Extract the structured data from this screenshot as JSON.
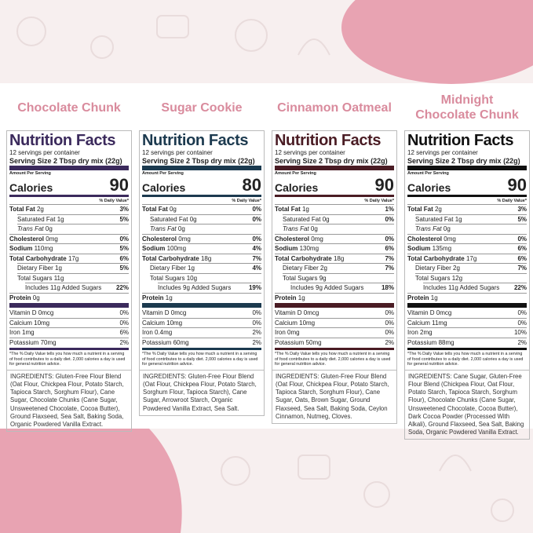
{
  "panels": [
    {
      "title": "Chocolate Chunk",
      "color": "#3b2a5c",
      "heading": "Nutrition Facts",
      "servings": "12 servings per container",
      "serving_size_label": "Serving Size",
      "serving_size": "2 Tbsp dry mix (22g)",
      "amount_per_serving": "Amount Per Serving",
      "calories_label": "Calories",
      "calories": "90",
      "dv_header": "% Daily Value*",
      "nutrients": [
        {
          "name": "Total Fat",
          "amount": "2g",
          "dv": "3%"
        },
        {
          "name": "Saturated Fat",
          "amount": "1g",
          "dv": "5%"
        },
        {
          "name": "Trans Fat",
          "amount": "0g"
        },
        {
          "name": "Cholesterol",
          "amount": "0mg",
          "dv": "0%"
        },
        {
          "name": "Sodium",
          "amount": "110mg",
          "dv": "5%"
        },
        {
          "name": "Total Carbohydrate",
          "amount": "17g",
          "dv": "6%"
        },
        {
          "name": "Dietary Fiber",
          "amount": "1g",
          "dv": "5%"
        },
        {
          "name": "Total Sugars",
          "amount": "11g"
        },
        {
          "name": "Includes 11g Added Sugars",
          "dv": "22%"
        },
        {
          "name": "Protein",
          "amount": "0g"
        }
      ],
      "vitamins": [
        {
          "name": "Vitamin D 0mcg",
          "dv": "0%"
        },
        {
          "name": "Calcium 10mg",
          "dv": "0%"
        },
        {
          "name": "Iron 1mg",
          "dv": "6%"
        },
        {
          "name": "Potassium 70mg",
          "dv": "2%"
        }
      ],
      "footnote": "*The % Daily Value tells you how much a nutrient in a serving of food contributes to a daily diet. 2,000 calories a day is used for general nutrition advice.",
      "ingredients": "INGREDIENTS: Gluten-Free Flour Blend (Oat Flour, Chickpea Flour, Potato Starch, Tapioca Starch, Sorghum Flour), Cane Sugar, Chocolate Chunks (Cane Sugar, Unsweetened Chocolate, Cocoa Butter), Ground Flaxseed, Sea Salt, Baking Soda, Organic Powdered Vanilla Extract."
    },
    {
      "title": "Sugar Cookie",
      "color": "#1c3a4f",
      "heading": "Nutrition Facts",
      "servings": "12 servings per container",
      "serving_size_label": "Serving Size",
      "serving_size": "2 Tbsp dry mix (22g)",
      "amount_per_serving": "Amount Per Serving",
      "calories_label": "Calories",
      "calories": "80",
      "dv_header": "% Daily Value*",
      "nutrients": [
        {
          "name": "Total Fat",
          "amount": "0g",
          "dv": "0%"
        },
        {
          "name": "Saturated Fat",
          "amount": "0g",
          "dv": "0%"
        },
        {
          "name": "Trans Fat",
          "amount": "0g"
        },
        {
          "name": "Cholesterol",
          "amount": "0mg",
          "dv": "0%"
        },
        {
          "name": "Sodium",
          "amount": "100mg",
          "dv": "4%"
        },
        {
          "name": "Total Carbohydrate",
          "amount": "18g",
          "dv": "7%"
        },
        {
          "name": "Dietary Fiber",
          "amount": "1g",
          "dv": "4%"
        },
        {
          "name": "Total Sugars",
          "amount": "10g"
        },
        {
          "name": "Includes 9g Added Sugars",
          "dv": "19%"
        },
        {
          "name": "Protein",
          "amount": "1g"
        }
      ],
      "vitamins": [
        {
          "name": "Vitamin D 0mcg",
          "dv": "0%"
        },
        {
          "name": "Calcium 10mg",
          "dv": "0%"
        },
        {
          "name": "Iron 0.4mg",
          "dv": "2%"
        },
        {
          "name": "Potassium 60mg",
          "dv": "2%"
        }
      ],
      "footnote": "*The % Daily Value tells you how much a nutrient in a serving of food contributes to a daily diet. 2,000 calories a day is used for general nutrition advice.",
      "ingredients": "INGREDIENTS: Gluten-Free Flour Blend (Oat Flour, Chickpea Flour, Potato Starch, Sorghum Flour, Tapioca Starch), Cane Sugar, Arrowroot Starch, Organic Powdered Vanilla Extract, Sea Salt."
    },
    {
      "title": "Cinnamon Oatmeal",
      "color": "#4a1c24",
      "heading": "Nutrition Facts",
      "servings": "12 servings per container",
      "serving_size_label": "Serving Size",
      "serving_size": "2 Tbsp dry mix (22g)",
      "amount_per_serving": "Amount Per Serving",
      "calories_label": "Calories",
      "calories": "90",
      "dv_header": "% Daily Value*",
      "nutrients": [
        {
          "name": "Total Fat",
          "amount": "1g",
          "dv": "1%"
        },
        {
          "name": "Saturated Fat",
          "amount": "0g",
          "dv": "0%"
        },
        {
          "name": "Trans Fat",
          "amount": "0g"
        },
        {
          "name": "Cholesterol",
          "amount": "0mg",
          "dv": "0%"
        },
        {
          "name": "Sodium",
          "amount": "130mg",
          "dv": "6%"
        },
        {
          "name": "Total Carbohydrate",
          "amount": "18g",
          "dv": "7%"
        },
        {
          "name": "Dietary Fiber",
          "amount": "2g",
          "dv": "7%"
        },
        {
          "name": "Total Sugars",
          "amount": "9g"
        },
        {
          "name": "Includes 9g Added Sugars",
          "dv": "18%"
        },
        {
          "name": "Protein",
          "amount": "1g"
        }
      ],
      "vitamins": [
        {
          "name": "Vitamin D 0mcg",
          "dv": "0%"
        },
        {
          "name": "Calcium 10mg",
          "dv": "0%"
        },
        {
          "name": "Iron 0mg",
          "dv": "0%"
        },
        {
          "name": "Potassium 50mg",
          "dv": "2%"
        }
      ],
      "footnote": "*The % Daily Value tells you how much a nutrient in a serving of food contributes to a daily diet. 2,000 calories a day is used for general nutrition advice.",
      "ingredients": "INGREDIENTS: Gluten-Free Flour Blend (Oat Flour, Chickpea Flour, Potato Starch, Tapioca Starch, Sorghum Flour), Cane Sugar, Oats, Brown Sugar, Ground Flaxseed, Sea Salt, Baking Soda, Ceylon Cinnamon, Nutmeg, Cloves."
    },
    {
      "title": "Midnight Chocolate Chunk",
      "color": "#111111",
      "heading": "Nutrition Facts",
      "servings": "12 servings per container",
      "serving_size_label": "Serving Size",
      "serving_size": "2 Tbsp dry mix (22g)",
      "amount_per_serving": "Amount Per Serving",
      "calories_label": "Calories",
      "calories": "90",
      "dv_header": "% Daily Value*",
      "nutrients": [
        {
          "name": "Total Fat",
          "amount": "2g",
          "dv": "3%"
        },
        {
          "name": "Saturated Fat",
          "amount": "1g",
          "dv": "5%"
        },
        {
          "name": "Trans Fat",
          "amount": "0g"
        },
        {
          "name": "Cholesterol",
          "amount": "0mg",
          "dv": "0%"
        },
        {
          "name": "Sodium",
          "amount": "135mg",
          "dv": "6%"
        },
        {
          "name": "Total Carbohydrate",
          "amount": "17g",
          "dv": "6%"
        },
        {
          "name": "Dietary Fiber",
          "amount": "2g",
          "dv": "7%"
        },
        {
          "name": "Total Sugars",
          "amount": "12g"
        },
        {
          "name": "Includes 11g Added Sugars",
          "dv": "22%"
        },
        {
          "name": "Protein",
          "amount": "1g"
        }
      ],
      "vitamins": [
        {
          "name": "Vitamin D 0mcg",
          "dv": "0%"
        },
        {
          "name": "Calcium 11mg",
          "dv": "0%"
        },
        {
          "name": "Iron 2mg",
          "dv": "10%"
        },
        {
          "name": "Potassium 88mg",
          "dv": "2%"
        }
      ],
      "footnote": "*The % Daily Value tells you how much a nutrient in a serving of food contributes to a daily diet. 2,000 calories a day is used for general nutrition advice.",
      "ingredients": "INGREDIENTS: Cane Sugar, Gluten-Free Flour Blend (Chickpea Flour, Oat Flour, Potato Starch, Tapioca Starch, Sorghum Flour), Chocolate Chunks (Cane Sugar, Unsweetened Chocolate, Cocoa Butter), Dark Cocoa Powder (Processed With Alkali), Ground Flaxseed, Sea Salt, Baking Soda, Organic Powdered Vanilla Extract."
    }
  ]
}
